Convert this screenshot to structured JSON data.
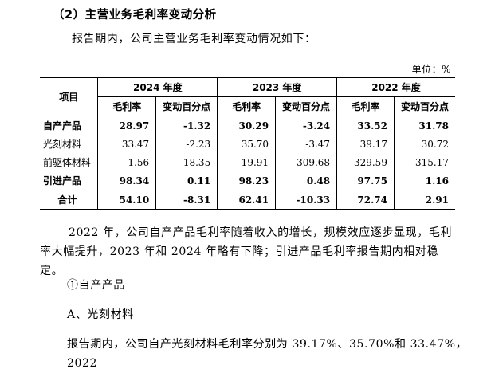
{
  "heading": "（2）主营业务毛利率变动分析",
  "intro": "报告期内，公司主营业务毛利率变动情况如下：",
  "unit": "单位：%",
  "table": {
    "item_header": "项目",
    "years": [
      "2024 年度",
      "2023 年度",
      "2022 年度"
    ],
    "sub_headers": [
      "毛利率",
      "变动百分点"
    ],
    "rows": [
      {
        "name": "自产产品",
        "bold": true,
        "values": [
          "28.97",
          "-1.32",
          "30.29",
          "-3.24",
          "33.52",
          "31.78"
        ]
      },
      {
        "name": "光刻材料",
        "bold": false,
        "values": [
          "33.47",
          "-2.23",
          "35.70",
          "-3.47",
          "39.17",
          "30.72"
        ]
      },
      {
        "name": "前驱体材料",
        "bold": false,
        "values": [
          "-1.56",
          "18.35",
          "-19.91",
          "309.68",
          "-329.59",
          "315.17"
        ]
      },
      {
        "name": "引进产品",
        "bold": true,
        "values": [
          "98.34",
          "0.11",
          "98.23",
          "0.48",
          "97.75",
          "1.16"
        ]
      },
      {
        "name": "合计",
        "bold": true,
        "values": [
          "54.10",
          "-8.31",
          "62.41",
          "-10.33",
          "72.74",
          "2.91"
        ]
      }
    ]
  },
  "para2": "2022 年，公司自产产品毛利率随着收入的增长，规模效应逐步显现，毛利率大幅提升，2023 年和 2024 年略有下降；引进产品毛利率报告期内相对稳定。",
  "sub1": "①自产产品",
  "sub2": "A、光刻材料",
  "para3": "报告期内，公司自产光刻材料毛利率分别为 39.17%、35.70%和 33.47%，2022"
}
